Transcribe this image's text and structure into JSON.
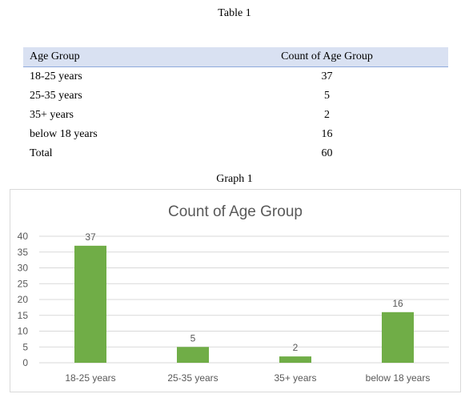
{
  "table_caption": "Table 1",
  "graph_caption": "Graph 1",
  "table": {
    "headers": [
      "Age Group",
      "Count of Age Group"
    ],
    "rows": [
      [
        "18-25 years",
        "37"
      ],
      [
        "25-35 years",
        "5"
      ],
      [
        "35+ years",
        "2"
      ],
      [
        "below 18 years",
        "16"
      ],
      [
        "Total",
        "60"
      ]
    ]
  },
  "chart_data": {
    "type": "bar",
    "title": "Count of Age Group",
    "categories": [
      "18-25 years",
      "25-35 years",
      "35+ years",
      "below 18 years"
    ],
    "values": [
      37,
      5,
      2,
      16
    ],
    "ylim": [
      0,
      40
    ],
    "yticks": [
      0,
      5,
      10,
      15,
      20,
      25,
      30,
      35,
      40
    ],
    "grid": true,
    "legend": "none",
    "bar_color": "#70ad47",
    "data_labels": true
  }
}
